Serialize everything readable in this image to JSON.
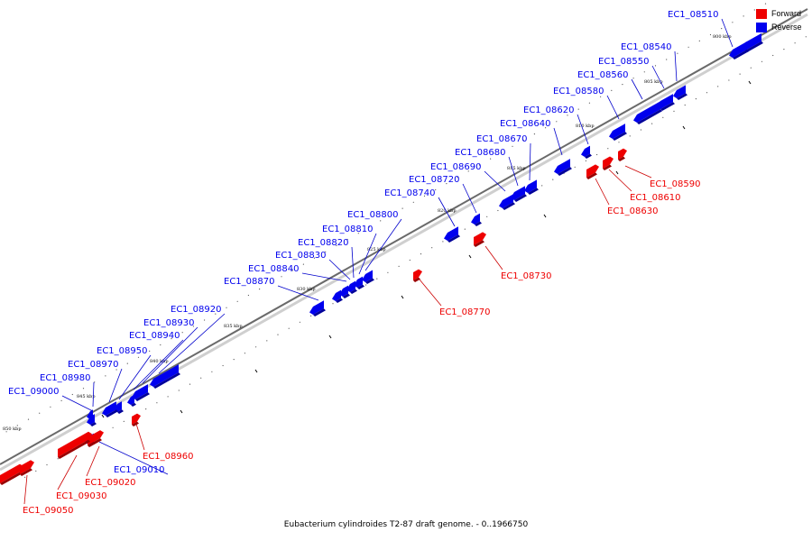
{
  "legend": {
    "forward_label": "Forward",
    "reverse_label": "Reverse",
    "forward_color": "#ee0000",
    "reverse_color": "#0000ee"
  },
  "footer": {
    "caption": "Eubacterium cylindroides T2-87 draft genome. - 0..1966750"
  },
  "axis": {
    "ticks": [
      "800 kbp",
      "805 kbp",
      "810 kbp",
      "815 kbp",
      "820 kbp",
      "825 kbp",
      "830 kbp",
      "835 kbp",
      "840 kbp",
      "845 kbp",
      "850 kbp"
    ]
  },
  "genes": [
    {
      "name": "EC1_08510",
      "strand": "reverse"
    },
    {
      "name": "EC1_08540",
      "strand": "reverse"
    },
    {
      "name": "EC1_08550",
      "strand": "reverse"
    },
    {
      "name": "EC1_08560",
      "strand": "reverse"
    },
    {
      "name": "EC1_08580",
      "strand": "reverse"
    },
    {
      "name": "EC1_08620",
      "strand": "reverse"
    },
    {
      "name": "EC1_08640",
      "strand": "reverse"
    },
    {
      "name": "EC1_08670",
      "strand": "reverse"
    },
    {
      "name": "EC1_08680",
      "strand": "reverse"
    },
    {
      "name": "EC1_08690",
      "strand": "reverse"
    },
    {
      "name": "EC1_08720",
      "strand": "reverse"
    },
    {
      "name": "EC1_08740",
      "strand": "reverse"
    },
    {
      "name": "EC1_08800",
      "strand": "reverse"
    },
    {
      "name": "EC1_08810",
      "strand": "reverse"
    },
    {
      "name": "EC1_08820",
      "strand": "reverse"
    },
    {
      "name": "EC1_08830",
      "strand": "reverse"
    },
    {
      "name": "EC1_08840",
      "strand": "reverse"
    },
    {
      "name": "EC1_08870",
      "strand": "reverse"
    },
    {
      "name": "EC1_08920",
      "strand": "reverse"
    },
    {
      "name": "EC1_08930",
      "strand": "reverse"
    },
    {
      "name": "EC1_08940",
      "strand": "reverse"
    },
    {
      "name": "EC1_08950",
      "strand": "reverse"
    },
    {
      "name": "EC1_08970",
      "strand": "reverse"
    },
    {
      "name": "EC1_08980",
      "strand": "reverse"
    },
    {
      "name": "EC1_09000",
      "strand": "reverse"
    },
    {
      "name": "EC1_09010",
      "strand": "reverse"
    },
    {
      "name": "EC1_08590",
      "strand": "forward"
    },
    {
      "name": "EC1_08610",
      "strand": "forward"
    },
    {
      "name": "EC1_08630",
      "strand": "forward"
    },
    {
      "name": "EC1_08730",
      "strand": "forward"
    },
    {
      "name": "EC1_08770",
      "strand": "forward"
    },
    {
      "name": "EC1_08960",
      "strand": "forward"
    },
    {
      "name": "EC1_09020",
      "strand": "forward"
    },
    {
      "name": "EC1_09030",
      "strand": "forward"
    },
    {
      "name": "EC1_09050",
      "strand": "forward"
    }
  ]
}
